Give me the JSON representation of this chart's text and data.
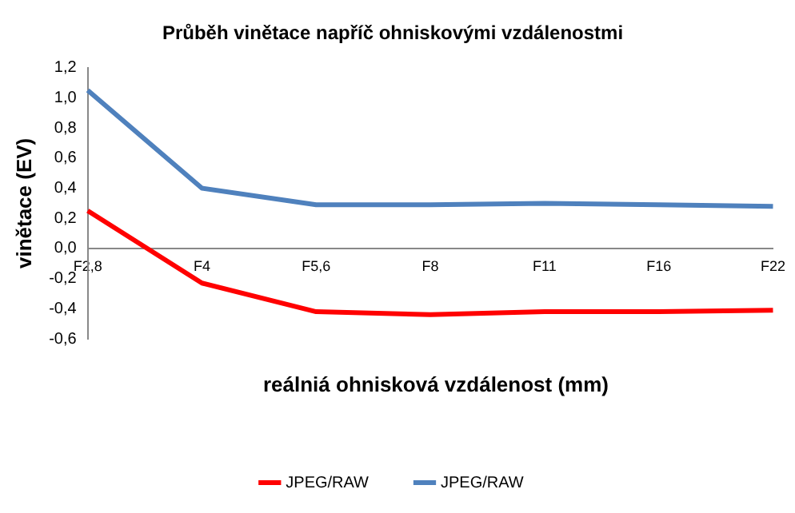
{
  "chart_data": {
    "type": "line",
    "title": "Průběh vinětace napříč ohniskovými vzdálenostmi",
    "xlabel": "reálniá ohnisková vzdálenost (mm)",
    "ylabel": "vinětace (EV)",
    "categories": [
      "F2,8",
      "F4",
      "F5,6",
      "F8",
      "F11",
      "F16",
      "F22"
    ],
    "series": [
      {
        "name": "JPEG/RAW",
        "color": "#ff0000",
        "values": [
          0.25,
          -0.23,
          -0.42,
          -0.44,
          -0.42,
          -0.42,
          -0.41
        ]
      },
      {
        "name": "JPEG/RAW",
        "color": "#4f81bd",
        "values": [
          1.05,
          0.4,
          0.29,
          0.29,
          0.3,
          0.29,
          0.28
        ]
      }
    ],
    "ylim": [
      -0.6,
      1.2
    ],
    "yticks": [
      {
        "value": -0.6,
        "label": "-0,6"
      },
      {
        "value": -0.4,
        "label": "-0,4"
      },
      {
        "value": -0.2,
        "label": "-0,2"
      },
      {
        "value": 0,
        "label": "0,0"
      },
      {
        "value": 0.2,
        "label": "0,2"
      },
      {
        "value": 0.4,
        "label": "0,4"
      },
      {
        "value": 0.6,
        "label": "0,6"
      },
      {
        "value": 0.8,
        "label": "0,8"
      },
      {
        "value": 1,
        "label": "1,0"
      },
      {
        "value": 1.2,
        "label": "1,2"
      }
    ],
    "grid": false,
    "legend": "bottom",
    "marker": "none",
    "line_style": "solid"
  }
}
